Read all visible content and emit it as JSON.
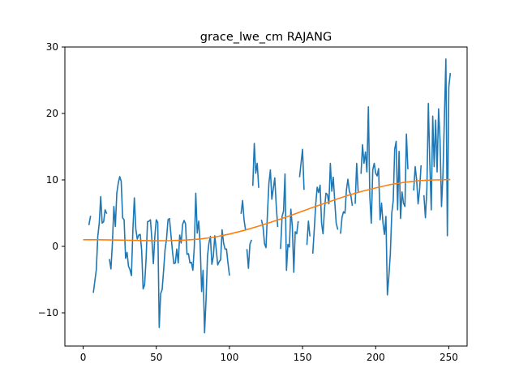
{
  "chart_data": {
    "type": "line",
    "title": "grace_lwe_cm RAJANG",
    "xlabel": "",
    "ylabel": "",
    "xlim": [
      -12.5,
      262.5
    ],
    "ylim": [
      -15,
      30
    ],
    "xticks": [
      0,
      50,
      100,
      150,
      200,
      250
    ],
    "yticks": [
      -10,
      0,
      10,
      20,
      30
    ],
    "grid": false,
    "colors": {
      "raw": "#1f77b4",
      "trend": "#ff7f0e"
    },
    "series": [
      {
        "name": "",
        "color": "#1f77b4",
        "segments": [
          [
            [
              4,
              3.3
            ],
            [
              5,
              4.5
            ]
          ],
          [
            [
              7,
              -6.9
            ],
            [
              9,
              -3.5
            ],
            [
              10,
              1.5
            ],
            [
              11,
              3.5
            ],
            [
              12,
              7.5
            ],
            [
              13,
              3.5
            ],
            [
              14,
              3.7
            ],
            [
              15,
              5.5
            ],
            [
              16,
              5.0
            ]
          ],
          [
            [
              18,
              -2.0
            ],
            [
              19,
              -3.4
            ],
            [
              20,
              0.5
            ],
            [
              21,
              6.0
            ],
            [
              22,
              3.0
            ],
            [
              23,
              8.0
            ],
            [
              24,
              9.5
            ],
            [
              25,
              10.5
            ],
            [
              26,
              9.8
            ],
            [
              27,
              4.3
            ],
            [
              28,
              4.0
            ],
            [
              29,
              -1.8
            ],
            [
              30,
              -0.9
            ],
            [
              31,
              -3.0
            ],
            [
              32,
              -3.5
            ],
            [
              33,
              -4.4
            ],
            [
              34,
              2.5
            ],
            [
              35,
              7.3
            ],
            [
              36,
              2.6
            ],
            [
              37,
              1.1
            ],
            [
              38,
              1.7
            ],
            [
              39,
              1.8
            ],
            [
              40,
              -0.6
            ],
            [
              41,
              -6.4
            ],
            [
              42,
              -5.8
            ],
            [
              43,
              -2.0
            ],
            [
              44,
              3.7
            ],
            [
              45,
              3.8
            ],
            [
              46,
              4.0
            ],
            [
              47,
              1.0
            ],
            [
              48,
              -2.6
            ],
            [
              49,
              1.5
            ],
            [
              50,
              4.0
            ],
            [
              51,
              3.6
            ],
            [
              52,
              -12.2
            ],
            [
              53,
              -7.1
            ],
            [
              54,
              -6.5
            ],
            [
              55,
              -3.6
            ],
            [
              56,
              -0.5
            ],
            [
              57,
              1.1
            ],
            [
              58,
              4.0
            ],
            [
              59,
              4.2
            ],
            [
              60,
              1.8
            ],
            [
              61,
              -0.6
            ],
            [
              62,
              -2.6
            ],
            [
              63,
              -2.5
            ],
            [
              64,
              -0.4
            ],
            [
              65,
              -2.5
            ],
            [
              66,
              1.7
            ],
            [
              67,
              0.5
            ],
            [
              68,
              3.3
            ],
            [
              69,
              3.9
            ],
            [
              70,
              3.4
            ],
            [
              71,
              -1.2
            ],
            [
              72,
              -1.1
            ],
            [
              73,
              -2.5
            ],
            [
              74,
              -2.4
            ],
            [
              75,
              -3.6
            ],
            [
              76,
              0.0
            ],
            [
              77,
              8.0
            ],
            [
              78,
              2.0
            ],
            [
              79,
              3.8
            ],
            [
              80,
              0.3
            ],
            [
              81,
              -6.8
            ],
            [
              82,
              -3.6
            ],
            [
              83,
              -13.0
            ],
            [
              84,
              -8.1
            ],
            [
              85,
              -1.5
            ],
            [
              86,
              0.5
            ],
            [
              87,
              1.5
            ],
            [
              88,
              -2.7
            ],
            [
              89,
              -1.5
            ],
            [
              90,
              1.6
            ],
            [
              91,
              -0.5
            ],
            [
              92,
              -2.8
            ],
            [
              93,
              -2.3
            ],
            [
              94,
              -2.0
            ],
            [
              95,
              2.5
            ],
            [
              96,
              0.5
            ],
            [
              97,
              -0.4
            ],
            [
              98,
              -0.4
            ],
            [
              99,
              -2.5
            ],
            [
              100,
              -4.3
            ]
          ],
          [
            [
              108,
              5.0
            ],
            [
              109,
              6.9
            ],
            [
              110,
              4.0
            ],
            [
              111,
              2.5
            ]
          ],
          [
            [
              112,
              -0.5
            ],
            [
              113,
              -3.3
            ],
            [
              114,
              0.3
            ],
            [
              115,
              0.9
            ]
          ],
          [
            [
              116,
              9.2
            ],
            [
              117,
              15.5
            ],
            [
              118,
              11.0
            ],
            [
              119,
              12.5
            ],
            [
              120,
              8.9
            ]
          ],
          [
            [
              122,
              3.9
            ],
            [
              123,
              2.9
            ],
            [
              124,
              0.4
            ],
            [
              125,
              -0.2
            ],
            [
              126,
              4.9
            ],
            [
              127,
              9.5
            ],
            [
              128,
              11.5
            ],
            [
              129,
              7.1
            ],
            [
              130,
              8.7
            ],
            [
              131,
              10.3
            ],
            [
              132,
              6.2
            ],
            [
              133,
              3.0
            ]
          ],
          [
            [
              135,
              -0.3
            ],
            [
              136,
              4.5
            ],
            [
              137,
              5.3
            ],
            [
              138,
              10.9
            ],
            [
              139,
              -3.6
            ],
            [
              140,
              0.3
            ],
            [
              141,
              -0.1
            ],
            [
              142,
              5.6
            ],
            [
              143,
              3.0
            ],
            [
              144,
              -3.9
            ],
            [
              145,
              2.2
            ],
            [
              146,
              1.9
            ],
            [
              147,
              3.7
            ]
          ],
          [
            [
              148,
              10.5
            ],
            [
              149,
              12.6
            ],
            [
              150,
              14.6
            ],
            [
              151,
              8.6
            ]
          ],
          [
            [
              153,
              0.3
            ],
            [
              154,
              3.8
            ],
            [
              155,
              1.6
            ]
          ],
          [
            [
              157,
              -1.0
            ],
            [
              158,
              2.5
            ],
            [
              159,
              6.3
            ],
            [
              160,
              8.9
            ],
            [
              161,
              8.1
            ],
            [
              162,
              9.2
            ],
            [
              163,
              3.5
            ],
            [
              164,
              1.9
            ],
            [
              165,
              5.6
            ],
            [
              166,
              8.0
            ],
            [
              167,
              7.8
            ],
            [
              168,
              6.4
            ],
            [
              169,
              12.5
            ],
            [
              170,
              8.3
            ],
            [
              171,
              10.4
            ],
            [
              172,
              6.8
            ],
            [
              173,
              3.5
            ],
            [
              174,
              2.6
            ]
          ],
          [
            [
              176,
              2.0
            ],
            [
              177,
              4.4
            ],
            [
              178,
              5.2
            ],
            [
              179,
              5.0
            ],
            [
              180,
              8.5
            ],
            [
              181,
              10.1
            ],
            [
              182,
              8.3
            ],
            [
              183,
              7.7
            ],
            [
              184,
              6.2
            ]
          ],
          [
            [
              186,
              6.5
            ],
            [
              187,
              12.5
            ],
            [
              188,
              8.3
            ]
          ],
          [
            [
              190,
              11.0
            ],
            [
              191,
              15.3
            ],
            [
              192,
              12.5
            ],
            [
              193,
              14.2
            ],
            [
              194,
              11.2
            ],
            [
              195,
              21.0
            ],
            [
              196,
              7.4
            ],
            [
              197,
              3.5
            ],
            [
              198,
              11.5
            ],
            [
              199,
              12.5
            ],
            [
              200,
              11.0
            ],
            [
              201,
              10.6
            ],
            [
              202,
              11.7
            ],
            [
              203,
              4.0
            ],
            [
              204,
              6.5
            ],
            [
              205,
              3.5
            ],
            [
              206,
              1.8
            ],
            [
              207,
              4.5
            ],
            [
              208,
              -7.3
            ],
            [
              209,
              -4.5
            ],
            [
              210,
              -1.2
            ],
            [
              211,
              5.0
            ],
            [
              212,
              6.9
            ],
            [
              213,
              14.6
            ],
            [
              214,
              15.8
            ],
            [
              215,
              5.5
            ],
            [
              216,
              14.3
            ],
            [
              217,
              4.2
            ],
            [
              218,
              8.2
            ],
            [
              219,
              6.5
            ],
            [
              220,
              6.0
            ],
            [
              221,
              16.9
            ],
            [
              222,
              11.7
            ]
          ],
          [
            [
              226,
              8.5
            ],
            [
              227,
              12.0
            ],
            [
              228,
              10.0
            ],
            [
              229,
              6.4
            ],
            [
              230,
              8.5
            ],
            [
              231,
              12.1
            ]
          ],
          [
            [
              233,
              7.6
            ],
            [
              234,
              4.3
            ],
            [
              235,
              8.6
            ],
            [
              236,
              21.5
            ],
            [
              237,
              12.5
            ],
            [
              238,
              5.5
            ],
            [
              239,
              19.6
            ],
            [
              240,
              12.0
            ],
            [
              241,
              19.0
            ],
            [
              242,
              11.2
            ],
            [
              243,
              20.7
            ],
            [
              244,
              16.0
            ],
            [
              245,
              6.0
            ],
            [
              246,
              10.9
            ],
            [
              247,
              19.5
            ],
            [
              248,
              28.2
            ],
            [
              249,
              1.6
            ],
            [
              250,
              24.0
            ],
            [
              251,
              26.0
            ]
          ]
        ]
      },
      {
        "name": "",
        "color": "#ff7f0e",
        "x": [
          0,
          10,
          20,
          30,
          40,
          50,
          60,
          70,
          80,
          90,
          100,
          110,
          120,
          130,
          140,
          150,
          160,
          170,
          180,
          190,
          200,
          210,
          220,
          230,
          240,
          251
        ],
        "y": [
          1.0,
          1.0,
          0.97,
          0.93,
          0.88,
          0.85,
          0.87,
          0.95,
          1.1,
          1.4,
          1.85,
          2.4,
          3.05,
          3.75,
          4.5,
          5.3,
          6.1,
          6.85,
          7.6,
          8.25,
          8.8,
          9.3,
          9.65,
          9.9,
          10.0,
          10.05
        ]
      }
    ]
  }
}
